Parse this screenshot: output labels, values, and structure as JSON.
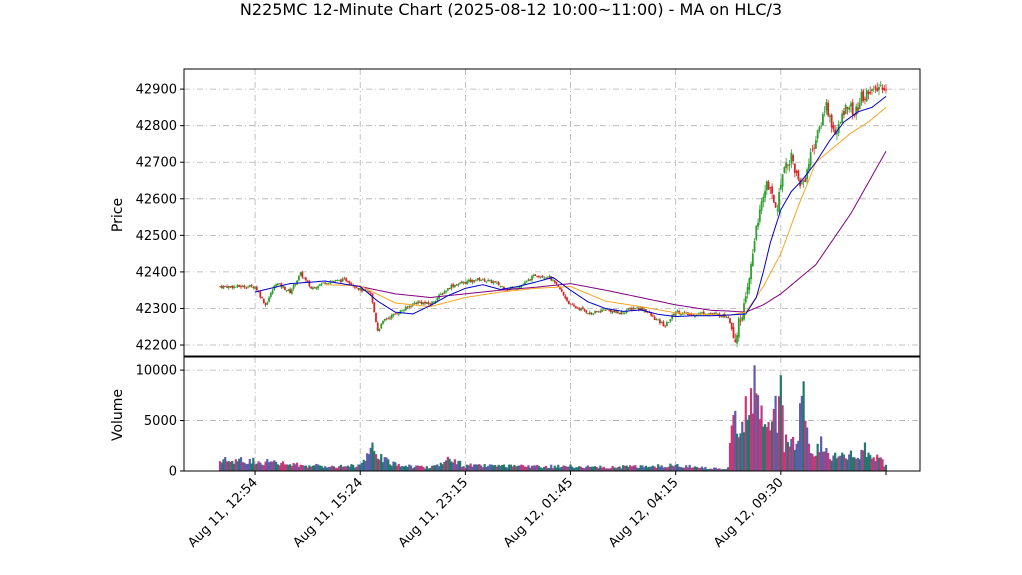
{
  "chart_data": {
    "type": "candlestick",
    "title": "N225MC 12-Minute Chart (2025-08-12 10:00~11:00) - MA on HLC/3",
    "price_panel": {
      "ylabel": "Price",
      "ylim": [
        42170,
        42955
      ],
      "yticks": [
        42200,
        42300,
        42400,
        42500,
        42600,
        42700,
        42800,
        42900
      ],
      "grid": true
    },
    "volume_panel": {
      "ylabel": "Volume",
      "ylim": [
        0,
        11300
      ],
      "yticks": [
        0,
        5000,
        10000
      ],
      "grid": true
    },
    "x_tick_labels": [
      "Aug 11, 12:54",
      "Aug 11, 15:24",
      "Aug 11, 23:15",
      "Aug 12, 01:45",
      "Aug 12, 04:15",
      "Aug 12, 09:30"
    ],
    "x_tick_positions": [
      10,
      40,
      70,
      100,
      130,
      160
    ],
    "x_range": [
      0,
      190
    ],
    "colors": {
      "up": "#2ca02c",
      "down": "#d62728",
      "ma_fast": "#0000cc",
      "ma_mid": "#f5a623",
      "ma_slow": "#800080",
      "grid": "#b0b0b0"
    },
    "ohlc_anchor_closes": [
      [
        10,
        42360
      ],
      [
        13,
        42310
      ],
      [
        16,
        42370
      ],
      [
        20,
        42345
      ],
      [
        23,
        42395
      ],
      [
        26,
        42355
      ],
      [
        30,
        42372
      ],
      [
        36,
        42378
      ],
      [
        40,
        42352
      ],
      [
        43,
        42340
      ],
      [
        45,
        42240
      ],
      [
        47,
        42270
      ],
      [
        50,
        42285
      ],
      [
        53,
        42300
      ],
      [
        56,
        42318
      ],
      [
        60,
        42312
      ],
      [
        63,
        42338
      ],
      [
        66,
        42362
      ],
      [
        70,
        42372
      ],
      [
        74,
        42380
      ],
      [
        78,
        42372
      ],
      [
        82,
        42352
      ],
      [
        86,
        42362
      ],
      [
        90,
        42392
      ],
      [
        94,
        42385
      ],
      [
        97,
        42352
      ],
      [
        100,
        42308
      ],
      [
        103,
        42298
      ],
      [
        106,
        42285
      ],
      [
        110,
        42298
      ],
      [
        114,
        42286
      ],
      [
        118,
        42302
      ],
      [
        121,
        42298
      ],
      [
        124,
        42272
      ],
      [
        127,
        42252
      ],
      [
        130,
        42292
      ],
      [
        134,
        42282
      ],
      [
        138,
        42288
      ],
      [
        142,
        42283
      ],
      [
        145,
        42278
      ],
      [
        147,
        42215
      ],
      [
        148,
        42260
      ],
      [
        149,
        42290
      ],
      [
        150,
        42320
      ],
      [
        151,
        42380
      ],
      [
        152,
        42450
      ],
      [
        153,
        42530
      ],
      [
        154,
        42560
      ],
      [
        155,
        42600
      ],
      [
        156,
        42650
      ],
      [
        157,
        42620
      ],
      [
        158,
        42590
      ],
      [
        159,
        42580
      ],
      [
        160,
        42640
      ],
      [
        161,
        42700
      ],
      [
        162,
        42690
      ],
      [
        163,
        42720
      ],
      [
        164,
        42680
      ],
      [
        165,
        42650
      ],
      [
        166,
        42640
      ],
      [
        167,
        42660
      ],
      [
        168,
        42700
      ],
      [
        169,
        42740
      ],
      [
        170,
        42760
      ],
      [
        171,
        42790
      ],
      [
        172,
        42830
      ],
      [
        173,
        42860
      ],
      [
        174,
        42820
      ],
      [
        175,
        42790
      ],
      [
        176,
        42780
      ],
      [
        177,
        42810
      ],
      [
        178,
        42840
      ],
      [
        179,
        42860
      ],
      [
        180,
        42850
      ],
      [
        181,
        42830
      ],
      [
        182,
        42850
      ],
      [
        183,
        42880
      ],
      [
        184,
        42875
      ],
      [
        185,
        42900
      ],
      [
        186,
        42895
      ],
      [
        187,
        42890
      ],
      [
        188,
        42905
      ],
      [
        189,
        42910
      ],
      [
        190,
        42905
      ]
    ],
    "volume_anchors": [
      [
        10,
        1100
      ],
      [
        20,
        700
      ],
      [
        30,
        500
      ],
      [
        40,
        600
      ],
      [
        44,
        2400
      ],
      [
        48,
        900
      ],
      [
        55,
        500
      ],
      [
        60,
        400
      ],
      [
        65,
        1200
      ],
      [
        70,
        600
      ],
      [
        80,
        500
      ],
      [
        90,
        500
      ],
      [
        100,
        500
      ],
      [
        110,
        400
      ],
      [
        120,
        500
      ],
      [
        130,
        600
      ],
      [
        140,
        300
      ],
      [
        145,
        300
      ],
      [
        146,
        5500
      ],
      [
        148,
        3900
      ],
      [
        150,
        7800
      ],
      [
        151,
        5800
      ],
      [
        152,
        9500
      ],
      [
        153,
        6800
      ],
      [
        154,
        6400
      ],
      [
        155,
        5100
      ],
      [
        156,
        4100
      ],
      [
        157,
        3500
      ],
      [
        158,
        7000
      ],
      [
        159,
        5100
      ],
      [
        160,
        7600
      ],
      [
        161,
        2900
      ],
      [
        162,
        3100
      ],
      [
        163,
        2900
      ],
      [
        164,
        2300
      ],
      [
        165,
        3500
      ],
      [
        166,
        10700
      ],
      [
        167,
        5400
      ],
      [
        168,
        2100
      ],
      [
        170,
        2200
      ],
      [
        172,
        3000
      ],
      [
        174,
        1800
      ],
      [
        176,
        1300
      ],
      [
        178,
        1500
      ],
      [
        180,
        1600
      ],
      [
        182,
        1300
      ],
      [
        184,
        2200
      ],
      [
        186,
        1400
      ],
      [
        188,
        1700
      ],
      [
        190,
        500
      ]
    ],
    "ma_fast_anchors": [
      [
        10,
        42345
      ],
      [
        20,
        42368
      ],
      [
        30,
        42375
      ],
      [
        40,
        42360
      ],
      [
        45,
        42320
      ],
      [
        50,
        42290
      ],
      [
        55,
        42285
      ],
      [
        60,
        42308
      ],
      [
        65,
        42335
      ],
      [
        70,
        42355
      ],
      [
        75,
        42365
      ],
      [
        80,
        42352
      ],
      [
        85,
        42360
      ],
      [
        90,
        42372
      ],
      [
        95,
        42385
      ],
      [
        100,
        42350
      ],
      [
        105,
        42318
      ],
      [
        110,
        42300
      ],
      [
        115,
        42292
      ],
      [
        120,
        42296
      ],
      [
        125,
        42284
      ],
      [
        130,
        42278
      ],
      [
        135,
        42280
      ],
      [
        140,
        42280
      ],
      [
        145,
        42282
      ],
      [
        150,
        42285
      ],
      [
        153,
        42330
      ],
      [
        155,
        42400
      ],
      [
        157,
        42480
      ],
      [
        160,
        42570
      ],
      [
        163,
        42620
      ],
      [
        166,
        42650
      ],
      [
        170,
        42700
      ],
      [
        174,
        42760
      ],
      [
        178,
        42810
      ],
      [
        182,
        42838
      ],
      [
        186,
        42850
      ],
      [
        190,
        42880
      ]
    ],
    "ma_mid_anchors": [
      [
        30,
        42365
      ],
      [
        40,
        42362
      ],
      [
        50,
        42315
      ],
      [
        60,
        42305
      ],
      [
        70,
        42330
      ],
      [
        80,
        42345
      ],
      [
        90,
        42355
      ],
      [
        100,
        42360
      ],
      [
        110,
        42320
      ],
      [
        120,
        42305
      ],
      [
        130,
        42288
      ],
      [
        140,
        42283
      ],
      [
        145,
        42281
      ],
      [
        150,
        42290
      ],
      [
        155,
        42360
      ],
      [
        160,
        42450
      ],
      [
        165,
        42580
      ],
      [
        170,
        42700
      ],
      [
        175,
        42740
      ],
      [
        180,
        42780
      ],
      [
        185,
        42810
      ],
      [
        190,
        42850
      ]
    ],
    "ma_slow_anchors": [
      [
        40,
        42360
      ],
      [
        50,
        42340
      ],
      [
        60,
        42330
      ],
      [
        70,
        42340
      ],
      [
        80,
        42350
      ],
      [
        90,
        42358
      ],
      [
        100,
        42368
      ],
      [
        110,
        42350
      ],
      [
        120,
        42330
      ],
      [
        130,
        42310
      ],
      [
        140,
        42295
      ],
      [
        145,
        42293
      ],
      [
        150,
        42290
      ],
      [
        155,
        42310
      ],
      [
        160,
        42340
      ],
      [
        170,
        42420
      ],
      [
        180,
        42560
      ],
      [
        190,
        42730
      ]
    ]
  }
}
